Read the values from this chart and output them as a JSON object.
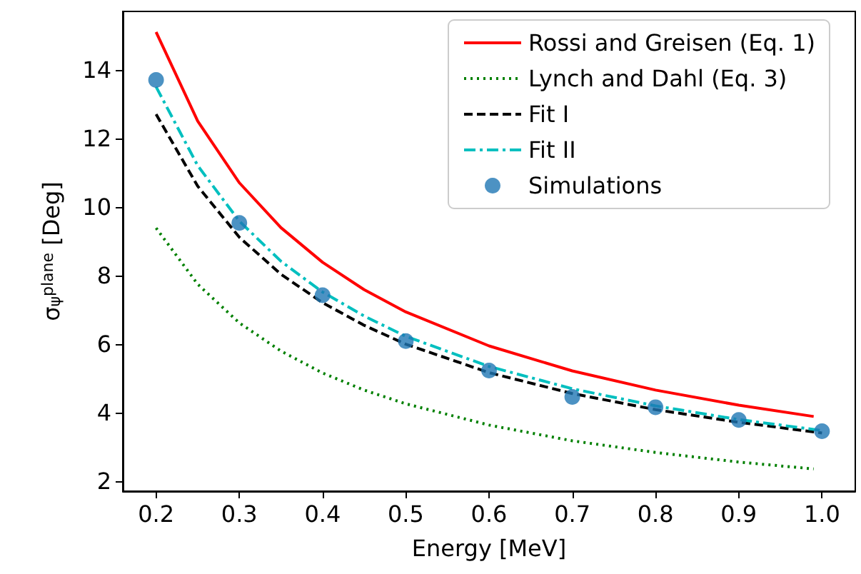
{
  "chart_data": {
    "type": "line",
    "xlabel": "Energy [MeV]",
    "ylabel": "σ$_{ψ}$$^{plane}$ [Deg]",
    "xlim": [
      0.16,
      1.04
    ],
    "ylim": [
      1.7,
      15.7
    ],
    "xticks": [
      0.2,
      0.3,
      0.4,
      0.5,
      0.6,
      0.7,
      0.8,
      0.9,
      {
        "value": 1,
        "label": "1.0"
      }
    ],
    "yticks": [
      2,
      4,
      6,
      8,
      10,
      12,
      14
    ],
    "grid": false,
    "legend": "top right",
    "series": [
      {
        "name": "Rossi and Greisen (Eq. 1)",
        "color": "#ff0000",
        "line_style": "solid",
        "marker": "none",
        "x": [
          0.2,
          0.25,
          0.3,
          0.35,
          0.4,
          0.45,
          0.5,
          0.6,
          0.7,
          0.8,
          0.9,
          0.99
        ],
        "values": [
          15.1,
          12.5,
          10.7,
          9.39,
          8.38,
          7.58,
          6.93,
          5.94,
          5.21,
          4.65,
          4.21,
          3.88
        ]
      },
      {
        "name": "Lynch and Dahl (Eq. 3)",
        "color": "#008000",
        "line_style": "dotted",
        "marker": "none",
        "x": [
          0.2,
          0.25,
          0.3,
          0.35,
          0.4,
          0.45,
          0.5,
          0.6,
          0.7,
          0.8,
          0.9,
          0.99
        ],
        "values": [
          9.38,
          7.74,
          6.61,
          5.79,
          5.15,
          4.65,
          4.25,
          3.63,
          3.17,
          2.83,
          2.55,
          2.35
        ]
      },
      {
        "name": "Fit I",
        "color": "#000000",
        "line_style": "dashed",
        "marker": "none",
        "x": [
          0.2,
          0.25,
          0.3,
          0.35,
          0.4,
          0.45,
          0.5,
          0.6,
          0.7,
          0.8,
          0.9,
          1.0
        ],
        "values": [
          12.7,
          10.6,
          9.11,
          8.03,
          7.2,
          6.54,
          5.99,
          5.16,
          4.55,
          4.08,
          3.71,
          3.4
        ]
      },
      {
        "name": "Fit II",
        "color": "#00bfbf",
        "line_style": "dashdot",
        "marker": "none",
        "x": [
          0.2,
          0.25,
          0.3,
          0.35,
          0.4,
          0.45,
          0.5,
          0.6,
          0.7,
          0.8,
          0.9,
          1.0
        ],
        "values": [
          13.5,
          11.2,
          9.58,
          8.41,
          7.51,
          6.81,
          6.22,
          5.34,
          4.69,
          4.19,
          3.79,
          3.47
        ]
      },
      {
        "name": "Simulations",
        "type": "scatter",
        "color": "#1f77b4",
        "marker": "circle",
        "x": [
          0.2,
          0.3,
          0.4,
          0.5,
          0.6,
          0.7,
          0.8,
          0.9,
          1.0
        ],
        "values": [
          13.7,
          9.53,
          7.42,
          6.08,
          5.22,
          4.45,
          4.15,
          3.78,
          3.45
        ]
      }
    ]
  }
}
